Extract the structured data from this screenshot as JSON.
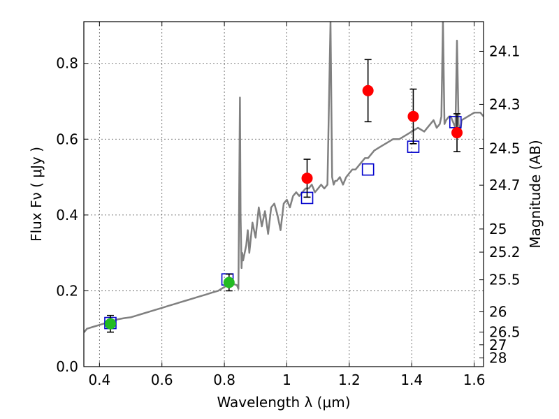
{
  "chart_data": {
    "type": "scatter",
    "title": "",
    "xlabel": "Wavelength  λ (μm)",
    "ylabel": "Flux  Fν  ( μJy )",
    "ylabel_right": "Magnitude (AB)",
    "xlim": [
      0.35,
      1.63
    ],
    "ylim": [
      0.0,
      0.91
    ],
    "grid": true,
    "x_ticks": [
      {
        "value": 0.4,
        "label": "0.4"
      },
      {
        "value": 0.6,
        "label": "0.6"
      },
      {
        "value": 0.8,
        "label": "0.8"
      },
      {
        "value": 1.0,
        "label": "1"
      },
      {
        "value": 1.2,
        "label": "1.2"
      },
      {
        "value": 1.4,
        "label": "1.4"
      },
      {
        "value": 1.6,
        "label": "1.6"
      }
    ],
    "y_ticks": [
      {
        "value": 0.0,
        "label": "0.0"
      },
      {
        "value": 0.2,
        "label": "0.2"
      },
      {
        "value": 0.4,
        "label": "0.4"
      },
      {
        "value": 0.6,
        "label": "0.6"
      },
      {
        "value": 0.8,
        "label": "0.8"
      }
    ],
    "y_right_ticks": [
      {
        "value": 24.1,
        "label": "24.1"
      },
      {
        "value": 24.3,
        "label": "24.3"
      },
      {
        "value": 24.5,
        "label": "24.5"
      },
      {
        "value": 24.7,
        "label": "24.7"
      },
      {
        "value": 25.0,
        "label": "25"
      },
      {
        "value": 25.2,
        "label": "25.2"
      },
      {
        "value": 25.5,
        "label": "25.5"
      },
      {
        "value": 26.0,
        "label": "26"
      },
      {
        "value": 26.5,
        "label": "26.5"
      },
      {
        "value": 27.0,
        "label": "27"
      },
      {
        "value": 28.0,
        "label": "28"
      }
    ],
    "series": [
      {
        "kind": "line",
        "color": "#808080",
        "x": [
          0.35,
          0.36,
          0.38,
          0.4,
          0.42,
          0.44,
          0.46,
          0.48,
          0.5,
          0.52,
          0.54,
          0.56,
          0.58,
          0.6,
          0.62,
          0.64,
          0.66,
          0.68,
          0.7,
          0.72,
          0.74,
          0.76,
          0.78,
          0.8,
          0.82,
          0.84,
          0.845,
          0.85,
          0.852,
          0.855,
          0.857,
          0.86,
          0.87,
          0.875,
          0.88,
          0.89,
          0.9,
          0.91,
          0.92,
          0.93,
          0.94,
          0.95,
          0.96,
          0.97,
          0.98,
          0.99,
          1.0,
          1.01,
          1.02,
          1.03,
          1.04,
          1.05,
          1.06,
          1.07,
          1.08,
          1.09,
          1.1,
          1.11,
          1.12,
          1.13,
          1.14,
          1.145,
          1.15,
          1.155,
          1.16,
          1.17,
          1.18,
          1.19,
          1.2,
          1.21,
          1.22,
          1.23,
          1.24,
          1.25,
          1.26,
          1.28,
          1.3,
          1.32,
          1.34,
          1.36,
          1.38,
          1.4,
          1.42,
          1.44,
          1.46,
          1.47,
          1.48,
          1.49,
          1.495,
          1.5,
          1.505,
          1.51,
          1.52,
          1.525,
          1.53,
          1.54,
          1.545,
          1.55,
          1.555,
          1.56,
          1.58,
          1.6,
          1.62,
          1.63
        ],
        "y": [
          0.09,
          0.1,
          0.105,
          0.11,
          0.115,
          0.12,
          0.125,
          0.128,
          0.13,
          0.135,
          0.14,
          0.145,
          0.15,
          0.155,
          0.16,
          0.165,
          0.17,
          0.175,
          0.18,
          0.185,
          0.19,
          0.195,
          0.2,
          0.21,
          0.22,
          0.215,
          0.205,
          0.71,
          0.4,
          0.26,
          0.3,
          0.28,
          0.32,
          0.36,
          0.3,
          0.38,
          0.34,
          0.42,
          0.37,
          0.41,
          0.35,
          0.42,
          0.43,
          0.4,
          0.36,
          0.43,
          0.44,
          0.42,
          0.45,
          0.46,
          0.45,
          0.46,
          0.47,
          0.47,
          0.48,
          0.46,
          0.47,
          0.48,
          0.47,
          0.48,
          0.91,
          0.5,
          0.48,
          0.49,
          0.49,
          0.5,
          0.48,
          0.5,
          0.51,
          0.52,
          0.52,
          0.53,
          0.54,
          0.55,
          0.55,
          0.57,
          0.58,
          0.59,
          0.6,
          0.6,
          0.61,
          0.62,
          0.63,
          0.62,
          0.64,
          0.65,
          0.63,
          0.64,
          0.66,
          0.91,
          0.64,
          0.65,
          0.66,
          0.66,
          0.65,
          0.63,
          0.86,
          0.64,
          0.62,
          0.65,
          0.66,
          0.67,
          0.67,
          0.66
        ]
      },
      {
        "kind": "markers",
        "marker": "square-open",
        "color": "#0000cc",
        "x": [
          0.435,
          0.81,
          1.065,
          1.26,
          1.405,
          1.54
        ],
        "y": [
          0.115,
          0.23,
          0.445,
          0.52,
          0.58,
          0.645
        ]
      },
      {
        "kind": "markers-errorbar",
        "marker": "circle",
        "color": "#22bb22",
        "x": [
          0.435,
          0.815
        ],
        "y": [
          0.113,
          0.222
        ],
        "yerr": [
          0.022,
          0.022
        ]
      },
      {
        "kind": "markers-errorbar",
        "marker": "circle",
        "color": "#ff0000",
        "x": [
          1.065,
          1.26,
          1.405,
          1.545
        ],
        "y": [
          0.497,
          0.728,
          0.66,
          0.617
        ],
        "yerr": [
          0.05,
          0.082,
          0.072,
          0.05
        ]
      }
    ]
  }
}
